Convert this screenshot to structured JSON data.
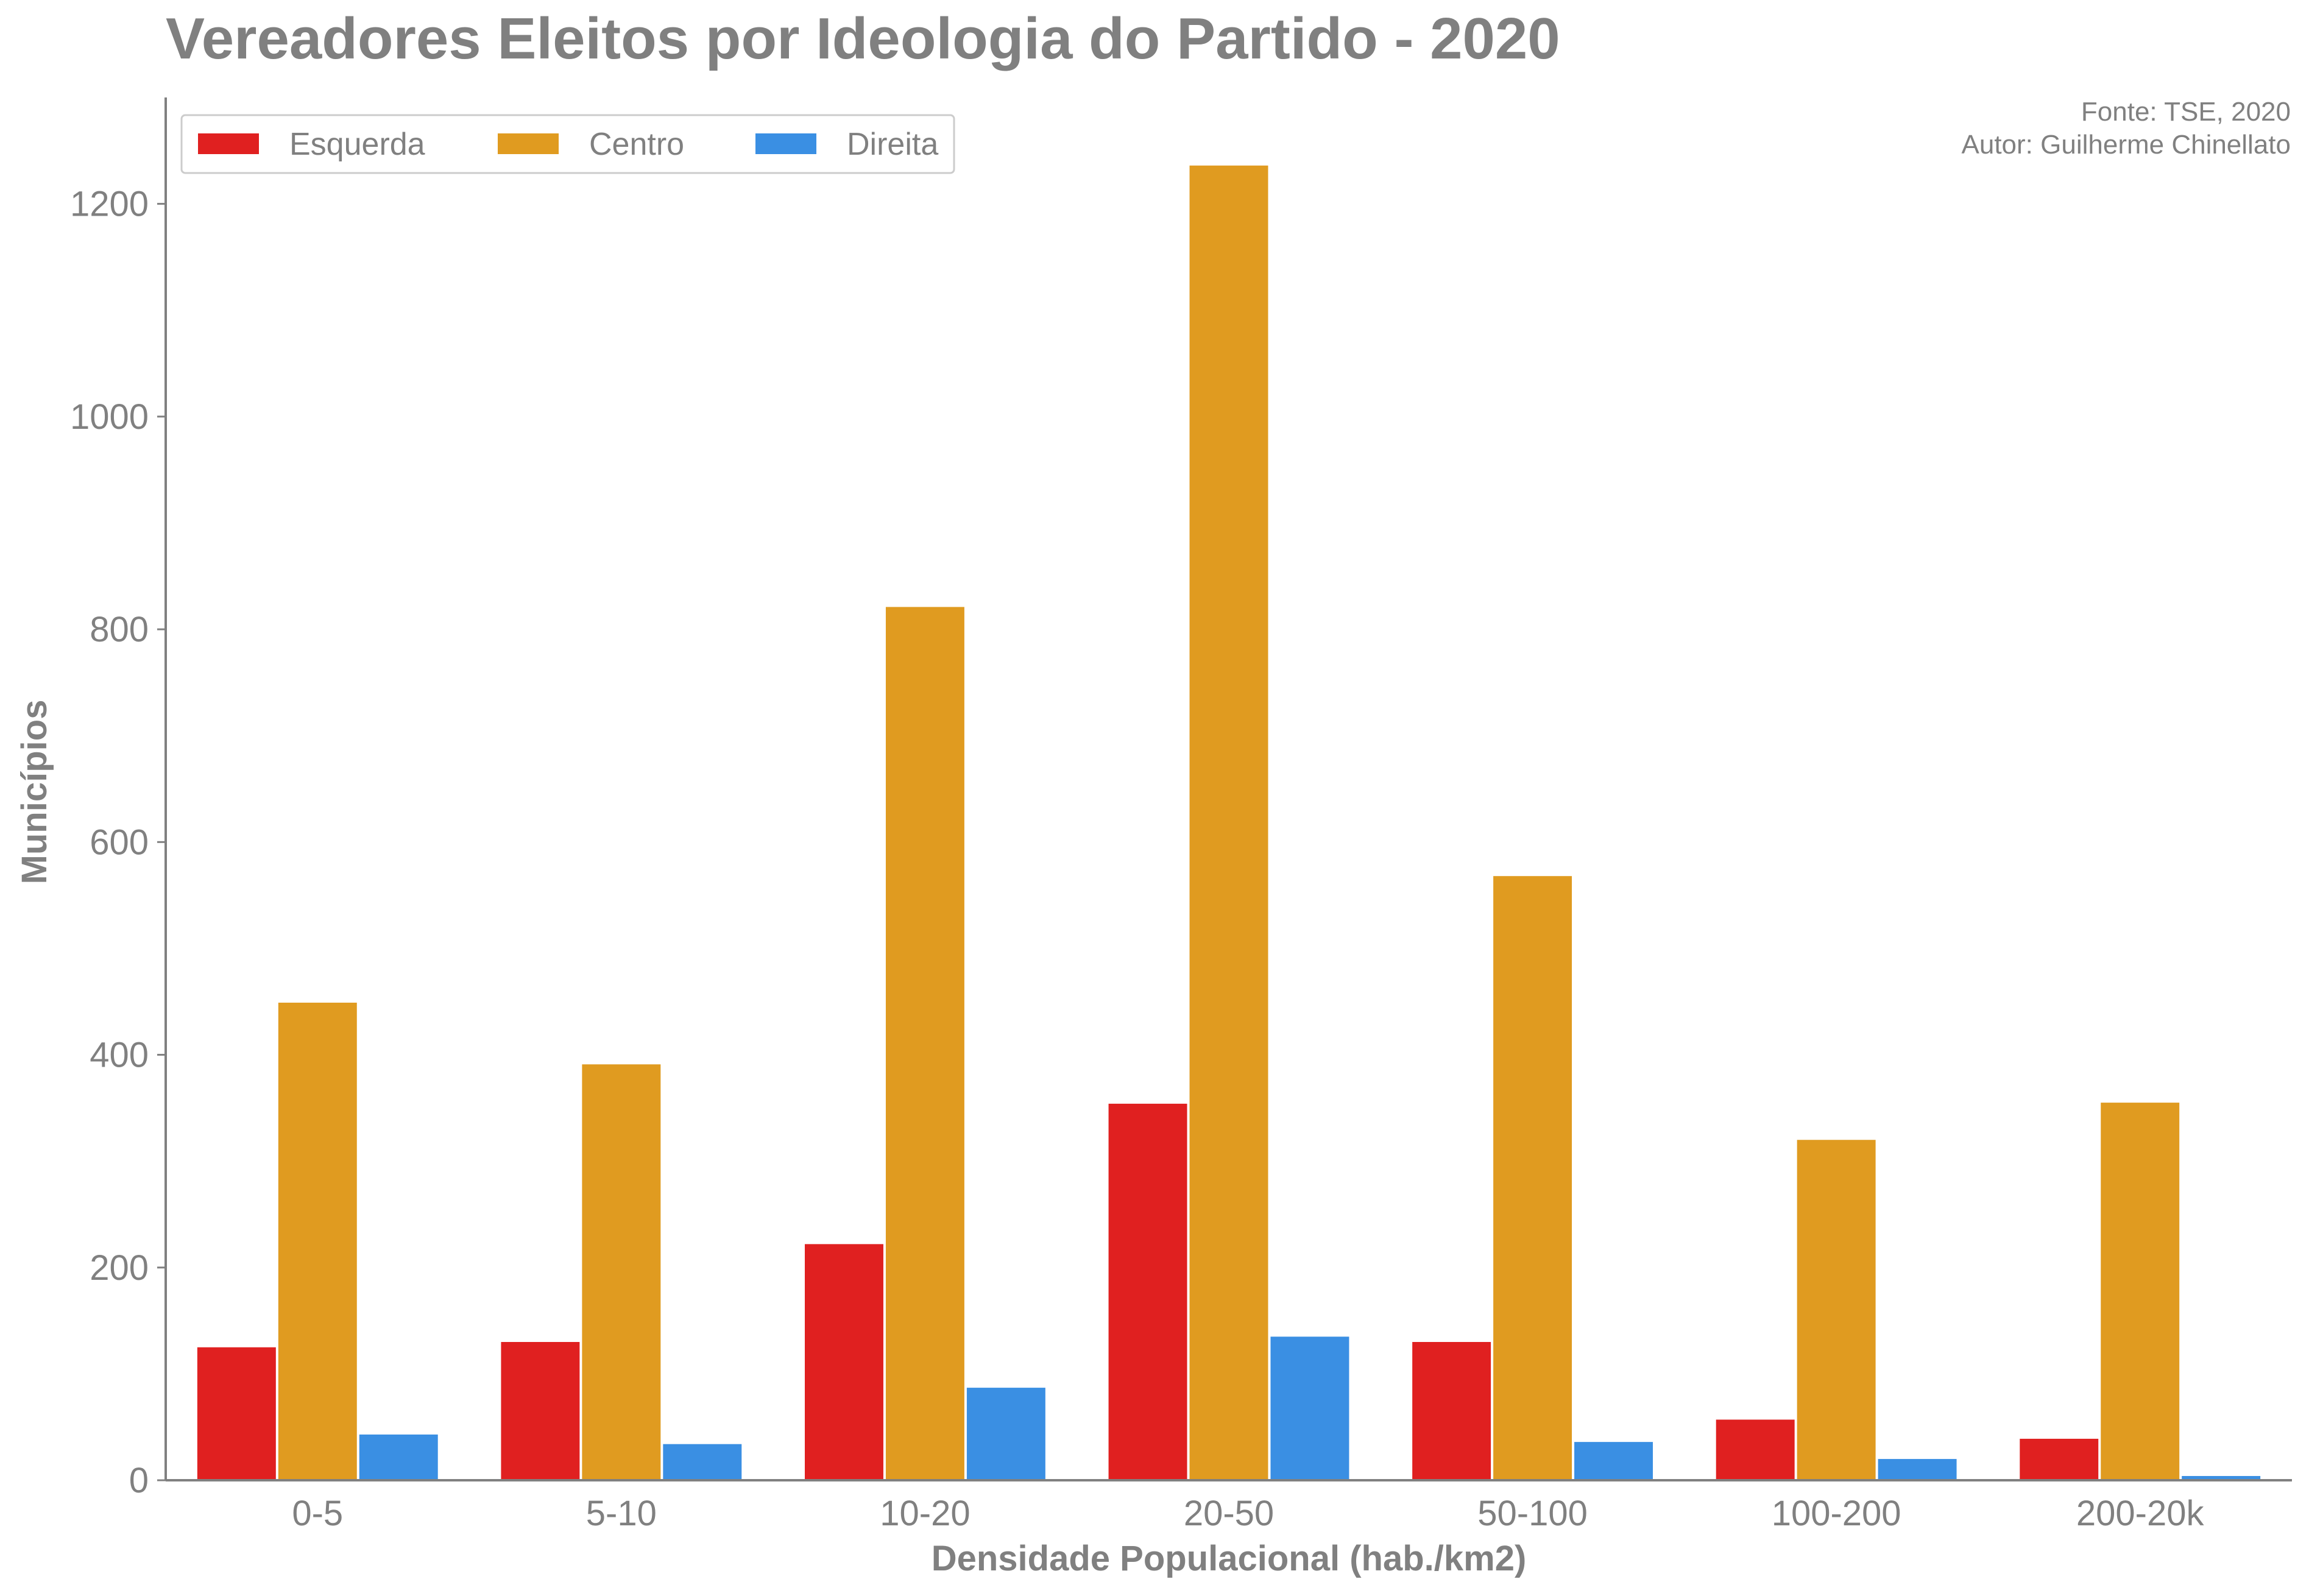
{
  "chart_data": {
    "type": "bar",
    "title": "Vereadores Eleitos por Ideologia do Partido - 2020",
    "source_line1": "Fonte: TSE, 2020",
    "source_line2": "Autor: Guilherme Chinellato",
    "xlabel": "Densidade Populacional (hab./km2)",
    "ylabel": "Municípios",
    "ylim": [
      0,
      1300
    ],
    "yticks": [
      0,
      200,
      400,
      600,
      800,
      1000,
      1200
    ],
    "grid": false,
    "legend_position": "top-left",
    "categories": [
      "0-5",
      "5-10",
      "10-20",
      "20-50",
      "50-100",
      "100-200",
      "200-20k"
    ],
    "series": [
      {
        "name": "Esquerda",
        "color": "#e02020",
        "values": [
          125,
          130,
          222,
          354,
          130,
          57,
          39
        ]
      },
      {
        "name": "Centro",
        "color": "#e09b20",
        "values": [
          449,
          391,
          821,
          1236,
          568,
          320,
          355
        ]
      },
      {
        "name": "Direita",
        "color": "#3a8fe3",
        "values": [
          43,
          34,
          87,
          135,
          36,
          20,
          4
        ]
      }
    ]
  }
}
